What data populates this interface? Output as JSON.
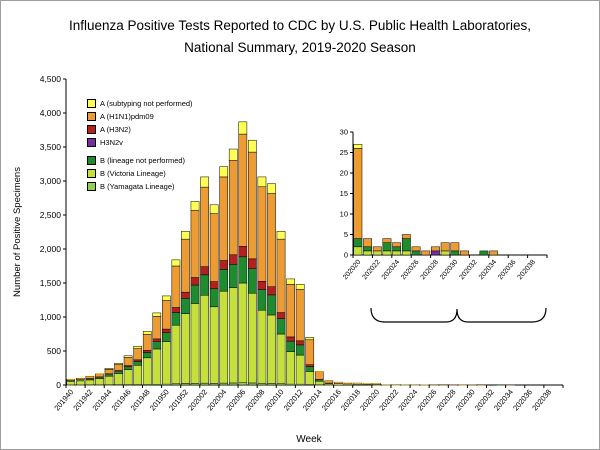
{
  "page": {
    "title_line1": "Influenza Positive Tests Reported to CDC by U.S. Public Health Laboratories,",
    "title_line2": "National Summary, 2019-2020 Season"
  },
  "chart_data": {
    "type": "bar",
    "stacked": true,
    "title": "Influenza Positive Tests Reported to CDC by U.S. Public Health Laboratories, National Summary, 2019-2020 Season",
    "xlabel": "Week",
    "ylabel": "Number of Positive Specimens",
    "ylim": [
      0,
      4500
    ],
    "ytick_interval": 500,
    "grid": false,
    "legend_position": "upper-left-inside",
    "categories": [
      "201940",
      "201941",
      "201942",
      "201943",
      "201944",
      "201945",
      "201946",
      "201947",
      "201948",
      "201949",
      "201950",
      "201951",
      "201952",
      "202001",
      "202002",
      "202003",
      "202004",
      "202005",
      "202006",
      "202007",
      "202008",
      "202009",
      "202010",
      "202011",
      "202012",
      "202013",
      "202014",
      "202015",
      "202016",
      "202017",
      "202018",
      "202019",
      "202020",
      "202021",
      "202022",
      "202023",
      "202024",
      "202025",
      "202026",
      "202027",
      "202028",
      "202029",
      "202030",
      "202031",
      "202032",
      "202033",
      "202034",
      "202035",
      "202036",
      "202037",
      "202038",
      "202039"
    ],
    "series": [
      {
        "name": "B (Yamagata Lineage)",
        "color": "#92d050",
        "values": [
          1,
          1,
          2,
          2,
          3,
          4,
          5,
          7,
          9,
          11,
          13,
          18,
          22,
          25,
          27,
          24,
          28,
          30,
          33,
          30,
          26,
          25,
          19,
          13,
          12,
          6,
          2,
          1,
          0,
          0,
          0,
          0,
          0,
          0,
          0,
          0,
          0,
          0,
          0,
          0,
          0,
          0,
          0,
          0,
          0,
          0,
          0,
          0,
          0,
          0,
          0,
          0
        ]
      },
      {
        "name": "B (Victoria Lineage)",
        "color": "#c5e03b",
        "values": [
          49,
          59,
          73,
          93,
          127,
          166,
          220,
          283,
          391,
          519,
          627,
          862,
          1028,
          1175,
          1293,
          1126,
          1352,
          1400,
          1467,
          1320,
          1074,
          1005,
          731,
          477,
          428,
          194,
          53,
          17,
          12,
          9,
          8,
          7,
          2,
          1,
          1,
          1,
          1,
          1,
          0,
          0,
          0,
          1,
          0,
          0,
          0,
          0,
          0,
          0,
          0,
          0,
          0,
          0
        ]
      },
      {
        "name": "B (lineage not performed)",
        "color": "#1f8b2f",
        "values": [
          10,
          12,
          15,
          18,
          25,
          32,
          43,
          57,
          79,
          106,
          130,
          185,
          225,
          270,
          300,
          265,
          320,
          345,
          385,
          360,
          305,
          295,
          225,
          155,
          150,
          70,
          21,
          7,
          5,
          4,
          3,
          3,
          2,
          1,
          0,
          2,
          1,
          3,
          1,
          0,
          0,
          0,
          1,
          0,
          0,
          1,
          0,
          0,
          0,
          0,
          0,
          0
        ]
      },
      {
        "name": "H3N2v",
        "color": "#7030a0",
        "values": [
          0,
          0,
          0,
          0,
          0,
          0,
          0,
          0,
          0,
          0,
          0,
          0,
          0,
          0,
          0,
          0,
          0,
          0,
          0,
          0,
          0,
          0,
          0,
          0,
          0,
          0,
          0,
          0,
          0,
          0,
          0,
          0,
          0,
          0,
          0,
          0,
          0,
          0,
          0,
          0,
          1,
          0,
          0,
          0,
          0,
          0,
          0,
          0,
          0,
          0,
          0,
          0
        ]
      },
      {
        "name": "A (H3N2)",
        "color": "#b22020",
        "values": [
          5,
          5,
          6,
          7,
          10,
          13,
          17,
          23,
          32,
          42,
          52,
          75,
          90,
          110,
          120,
          105,
          130,
          140,
          155,
          145,
          120,
          120,
          90,
          62,
          60,
          28,
          8,
          3,
          2,
          1,
          1,
          1,
          0,
          0,
          0,
          0,
          0,
          0,
          0,
          0,
          0,
          0,
          0,
          0,
          0,
          0,
          0,
          0,
          0,
          0,
          0,
          0
        ]
      },
      {
        "name": "A (H1N1)pdm09",
        "color": "#ed9b33",
        "values": [
          20,
          25,
          35,
          45,
          65,
          85,
          120,
          165,
          235,
          330,
          420,
          610,
          780,
          990,
          1170,
          1000,
          1230,
          1390,
          1650,
          1570,
          1390,
          1370,
          1080,
          773,
          755,
          367,
          114,
          38,
          23,
          19,
          16,
          15,
          22,
          2,
          1,
          1,
          1,
          1,
          1,
          1,
          1,
          2,
          2,
          1,
          0,
          0,
          1,
          0,
          0,
          0,
          0,
          0
        ]
      },
      {
        "name": "A (subtyping not performed)",
        "color": "#ffff54",
        "values": [
          5,
          8,
          9,
          10,
          15,
          20,
          25,
          35,
          44,
          52,
          68,
          90,
          115,
          130,
          150,
          130,
          150,
          165,
          180,
          175,
          145,
          145,
          115,
          80,
          75,
          35,
          12,
          4,
          3,
          2,
          2,
          2,
          1,
          0,
          0,
          0,
          0,
          0,
          0,
          0,
          0,
          0,
          0,
          0,
          0,
          0,
          0,
          0,
          0,
          0,
          0,
          0
        ]
      }
    ],
    "legend_order": [
      "A (subtyping not performed)",
      "A (H1N1)pdm09",
      "A (H3N2)",
      "H3N2v",
      "B (lineage not performed)",
      "B (Victoria Lineage)",
      "B (Yamagata Lineage)"
    ],
    "inset": {
      "description": "Magnified view of weeks 202020-202039",
      "start_category": "202020",
      "ylim": [
        0,
        30
      ],
      "ytick_interval": 5
    }
  }
}
